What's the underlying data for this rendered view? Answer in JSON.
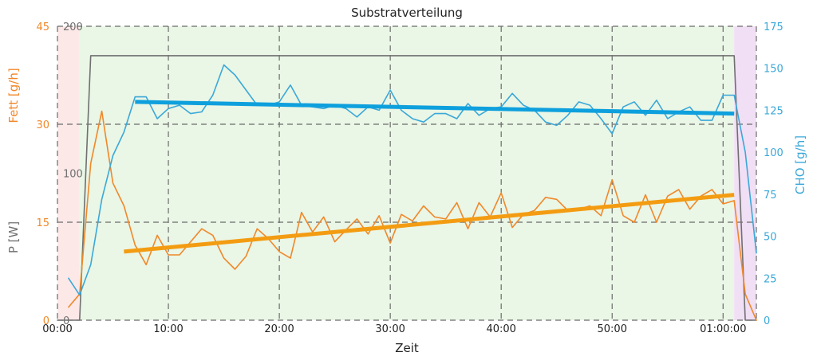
{
  "chart_data": {
    "type": "line",
    "title": "Substratverteilung",
    "xlabel": "Zeit",
    "x_unit": "minutes",
    "xlim": [
      0,
      63
    ],
    "x_tick_labels": [
      "00:00",
      "10:00",
      "20:00",
      "30:00",
      "40:00",
      "50:00",
      "01:00:00"
    ],
    "x_tick_values": [
      0,
      10,
      20,
      30,
      40,
      50,
      60
    ],
    "axes": {
      "fett": {
        "label": "Fett [g/h]",
        "range": [
          0,
          45
        ],
        "ticks": [
          "0",
          "15",
          "30",
          "45"
        ],
        "side": "left-outer",
        "color": "#f0882a"
      },
      "power": {
        "label": "P [W]",
        "range": [
          0,
          200
        ],
        "ticks": [
          "0",
          "100",
          "200"
        ],
        "side": "left-inner",
        "color": "#707070"
      },
      "cho": {
        "label": "CHO [g/h]",
        "range": [
          0,
          175
        ],
        "ticks": [
          "0",
          "25",
          "50",
          "75",
          "100",
          "125",
          "150",
          "175"
        ],
        "side": "right",
        "color": "#3aa8d8"
      }
    },
    "grid": true,
    "zones": [
      {
        "from": 0,
        "to": 2,
        "color": "#fde8e8"
      },
      {
        "from": 2,
        "to": 61,
        "color": "#eaf6e6"
      },
      {
        "from": 61,
        "to": 63,
        "color": "#f0dff5"
      }
    ],
    "series": [
      {
        "axis": "power",
        "color": "#707070",
        "x": [
          0,
          2,
          3,
          61,
          62,
          63
        ],
        "values": [
          0,
          0,
          180,
          180,
          0,
          0
        ]
      },
      {
        "axis": "fett",
        "color": "#f0882a",
        "x": [
          1,
          2,
          3,
          4,
          5,
          6,
          7,
          8,
          9,
          10,
          11,
          12,
          13,
          14,
          15,
          16,
          17,
          18,
          19,
          20,
          21,
          22,
          23,
          24,
          25,
          26,
          27,
          28,
          29,
          30,
          31,
          32,
          33,
          34,
          35,
          36,
          37,
          38,
          39,
          40,
          41,
          42,
          43,
          44,
          45,
          46,
          47,
          48,
          49,
          50,
          51,
          52,
          53,
          54,
          55,
          56,
          57,
          58,
          59,
          60,
          61,
          62,
          63
        ],
        "values": [
          2,
          4,
          24,
          32,
          21,
          17.5,
          11.5,
          8.5,
          13,
          10,
          10,
          12,
          14,
          13,
          9.5,
          7.8,
          9.8,
          14,
          12.5,
          10.5,
          9.5,
          16.5,
          13.5,
          15.8,
          12,
          13.8,
          15.5,
          13.2,
          16,
          11.8,
          16.2,
          15.2,
          17.5,
          15.8,
          15.5,
          18,
          14,
          18,
          15.8,
          19.5,
          14.2,
          16.2,
          16.8,
          18.8,
          18.5,
          16.8,
          17,
          17.5,
          16,
          21.5,
          16,
          15,
          19.2,
          15,
          19,
          20,
          17,
          19,
          20,
          17.8,
          18.3,
          4,
          0
        ]
      },
      {
        "axis": "cho",
        "color": "#3aa8d8",
        "x": [
          1,
          2,
          3,
          4,
          5,
          6,
          7,
          8,
          9,
          10,
          11,
          12,
          13,
          14,
          15,
          16,
          17,
          18,
          19,
          20,
          21,
          22,
          23,
          24,
          25,
          26,
          27,
          28,
          29,
          30,
          31,
          32,
          33,
          34,
          35,
          36,
          37,
          38,
          39,
          40,
          41,
          42,
          43,
          44,
          45,
          46,
          47,
          48,
          49,
          50,
          51,
          52,
          53,
          54,
          55,
          56,
          57,
          58,
          59,
          60,
          61,
          62,
          63
        ],
        "values": [
          25,
          15,
          33,
          72,
          98,
          112,
          133,
          133,
          120,
          126,
          128,
          123,
          124,
          134,
          152,
          146,
          137,
          128,
          128,
          130,
          140,
          128,
          127,
          126,
          128,
          126,
          121,
          127,
          125,
          137,
          125,
          120,
          118,
          123,
          123,
          120,
          129,
          122,
          126,
          127,
          135,
          128,
          125,
          118,
          116,
          122,
          130,
          128,
          120,
          111,
          127,
          130,
          122,
          131,
          120,
          124,
          127,
          119,
          119,
          134,
          134,
          100,
          40
        ]
      },
      {
        "axis": "fett",
        "color": "#f39c12",
        "trend": true,
        "x": [
          6,
          61
        ],
        "values": [
          10.5,
          19.2
        ]
      },
      {
        "axis": "cho",
        "color": "#0ea0dd",
        "trend": true,
        "x": [
          7,
          61
        ],
        "values": [
          130,
          123
        ]
      }
    ]
  }
}
